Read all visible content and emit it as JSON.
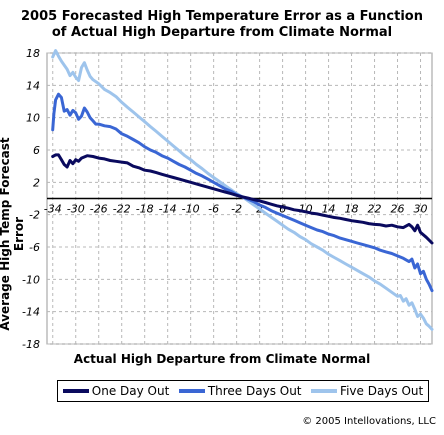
{
  "chart_data": {
    "type": "line",
    "title_line1": "2005 Forecasted High Temperature Error as a Function",
    "title_line2": "of Actual High Departure from Climate Normal",
    "xlabel": "Actual High Departure from Climate Normal",
    "ylabel": "Average High Temp Forecast Error",
    "xlim": [
      -35,
      32
    ],
    "ylim": [
      -18,
      18
    ],
    "x_ticks": [
      -34,
      -30,
      -26,
      -22,
      -18,
      -14,
      -10,
      -6,
      -2,
      2,
      6,
      10,
      14,
      18,
      22,
      26,
      30
    ],
    "x_tick_labels": [
      "-34",
      "-30",
      "-26",
      "-22",
      "-18",
      "-14",
      "-10",
      "-6",
      "-2",
      "2",
      "6",
      "10",
      "14",
      "18",
      "22",
      "26",
      "30"
    ],
    "y_ticks": [
      18,
      14,
      10,
      6,
      2,
      -2,
      -6,
      -10,
      -14,
      -18
    ],
    "y_tick_labels": [
      "18",
      "14",
      "10",
      "6",
      "2",
      "-2",
      "-6",
      "-10",
      "-14",
      "-18"
    ],
    "grid": true,
    "legend_position": "bottom",
    "series": [
      {
        "name": "One Day Out",
        "color": "#0a0a5e",
        "points": [
          [
            -34,
            5.2
          ],
          [
            -33.5,
            5.4
          ],
          [
            -33,
            5.4
          ],
          [
            -32.5,
            4.8
          ],
          [
            -32,
            4.2
          ],
          [
            -31.5,
            3.9
          ],
          [
            -31,
            4.7
          ],
          [
            -30.5,
            4.3
          ],
          [
            -30,
            4.8
          ],
          [
            -29.5,
            4.6
          ],
          [
            -29,
            5.0
          ],
          [
            -28,
            5.3
          ],
          [
            -27,
            5.2
          ],
          [
            -26,
            5.0
          ],
          [
            -25,
            4.9
          ],
          [
            -24,
            4.7
          ],
          [
            -23,
            4.6
          ],
          [
            -22,
            4.5
          ],
          [
            -21,
            4.4
          ],
          [
            -20,
            4.0
          ],
          [
            -19,
            3.8
          ],
          [
            -18,
            3.5
          ],
          [
            -17,
            3.4
          ],
          [
            -16,
            3.2
          ],
          [
            -15,
            3.0
          ],
          [
            -14,
            2.8
          ],
          [
            -13,
            2.6
          ],
          [
            -12,
            2.4
          ],
          [
            -11,
            2.2
          ],
          [
            -10,
            2.0
          ],
          [
            -9,
            1.8
          ],
          [
            -8,
            1.6
          ],
          [
            -7,
            1.4
          ],
          [
            -6,
            1.2
          ],
          [
            -5,
            1.0
          ],
          [
            -4,
            0.8
          ],
          [
            -3,
            0.6
          ],
          [
            -2,
            0.4
          ],
          [
            -1,
            0.2
          ],
          [
            0,
            0.05
          ],
          [
            1,
            -0.15
          ],
          [
            2,
            -0.3
          ],
          [
            3,
            -0.5
          ],
          [
            4,
            -0.7
          ],
          [
            5,
            -0.9
          ],
          [
            6,
            -1.05
          ],
          [
            7,
            -1.2
          ],
          [
            8,
            -1.4
          ],
          [
            9,
            -1.5
          ],
          [
            10,
            -1.65
          ],
          [
            11,
            -1.8
          ],
          [
            12,
            -1.9
          ],
          [
            13,
            -2.05
          ],
          [
            14,
            -2.2
          ],
          [
            15,
            -2.35
          ],
          [
            16,
            -2.45
          ],
          [
            17,
            -2.6
          ],
          [
            18,
            -2.75
          ],
          [
            19,
            -2.85
          ],
          [
            20,
            -2.95
          ],
          [
            21,
            -3.1
          ],
          [
            22,
            -3.2
          ],
          [
            23,
            -3.25
          ],
          [
            24,
            -3.4
          ],
          [
            25,
            -3.3
          ],
          [
            26,
            -3.5
          ],
          [
            27,
            -3.6
          ],
          [
            28,
            -3.2
          ],
          [
            28.5,
            -3.5
          ],
          [
            29,
            -4.0
          ],
          [
            29.5,
            -3.3
          ],
          [
            30,
            -4.2
          ],
          [
            31,
            -4.8
          ],
          [
            32,
            -5.5
          ]
        ]
      },
      {
        "name": "Three Days Out",
        "color": "#3a66d4",
        "points": [
          [
            -34,
            8.5
          ],
          [
            -33.8,
            10.5
          ],
          [
            -33.5,
            12.2
          ],
          [
            -33,
            12.9
          ],
          [
            -32.5,
            12.5
          ],
          [
            -32,
            10.8
          ],
          [
            -31.5,
            11.0
          ],
          [
            -31,
            10.3
          ],
          [
            -30.5,
            10.9
          ],
          [
            -30,
            10.6
          ],
          [
            -29.5,
            9.8
          ],
          [
            -29,
            10.2
          ],
          [
            -28.5,
            11.2
          ],
          [
            -28,
            10.7
          ],
          [
            -27.5,
            10.0
          ],
          [
            -27,
            9.6
          ],
          [
            -26.5,
            9.2
          ],
          [
            -26,
            9.2
          ],
          [
            -25,
            9.0
          ],
          [
            -24,
            8.9
          ],
          [
            -23,
            8.6
          ],
          [
            -22,
            8.0
          ],
          [
            -21,
            7.7
          ],
          [
            -20,
            7.3
          ],
          [
            -19,
            6.9
          ],
          [
            -18,
            6.4
          ],
          [
            -17,
            6.0
          ],
          [
            -16,
            5.7
          ],
          [
            -15,
            5.3
          ],
          [
            -14,
            5.0
          ],
          [
            -13,
            4.6
          ],
          [
            -12,
            4.2
          ],
          [
            -11,
            3.9
          ],
          [
            -10,
            3.5
          ],
          [
            -9,
            3.1
          ],
          [
            -8,
            2.8
          ],
          [
            -7,
            2.4
          ],
          [
            -6,
            2.0
          ],
          [
            -5,
            1.6
          ],
          [
            -4,
            1.2
          ],
          [
            -3,
            0.9
          ],
          [
            -2,
            0.5
          ],
          [
            -1,
            0.2
          ],
          [
            0,
            -0.1
          ],
          [
            1,
            -0.4
          ],
          [
            2,
            -0.8
          ],
          [
            3,
            -1.1
          ],
          [
            4,
            -1.5
          ],
          [
            5,
            -1.8
          ],
          [
            6,
            -2.1
          ],
          [
            7,
            -2.4
          ],
          [
            8,
            -2.7
          ],
          [
            9,
            -3.0
          ],
          [
            10,
            -3.3
          ],
          [
            11,
            -3.6
          ],
          [
            12,
            -3.9
          ],
          [
            13,
            -4.1
          ],
          [
            14,
            -4.4
          ],
          [
            15,
            -4.6
          ],
          [
            16,
            -4.9
          ],
          [
            17,
            -5.1
          ],
          [
            18,
            -5.3
          ],
          [
            19,
            -5.5
          ],
          [
            20,
            -5.7
          ],
          [
            21,
            -5.9
          ],
          [
            22,
            -6.1
          ],
          [
            23,
            -6.4
          ],
          [
            24,
            -6.6
          ],
          [
            25,
            -6.8
          ],
          [
            26,
            -7.1
          ],
          [
            27,
            -7.4
          ],
          [
            28,
            -7.8
          ],
          [
            28.5,
            -7.5
          ],
          [
            29,
            -8.6
          ],
          [
            29.5,
            -8.1
          ],
          [
            30,
            -9.3
          ],
          [
            30.5,
            -9.0
          ],
          [
            31,
            -10.0
          ],
          [
            31.5,
            -10.6
          ],
          [
            32,
            -11.4
          ]
        ]
      },
      {
        "name": "Five Days Out",
        "color": "#9ec4ec",
        "points": [
          [
            -34,
            17.5
          ],
          [
            -33.5,
            18.3
          ],
          [
            -33,
            17.6
          ],
          [
            -32.5,
            17.0
          ],
          [
            -32,
            16.5
          ],
          [
            -31.5,
            16.0
          ],
          [
            -31,
            15.2
          ],
          [
            -30.5,
            15.6
          ],
          [
            -30,
            15.0
          ],
          [
            -29.5,
            14.6
          ],
          [
            -29,
            16.2
          ],
          [
            -28.5,
            16.8
          ],
          [
            -28,
            15.9
          ],
          [
            -27.5,
            15.1
          ],
          [
            -27,
            14.7
          ],
          [
            -26,
            14.2
          ],
          [
            -25,
            13.5
          ],
          [
            -24,
            13.1
          ],
          [
            -23,
            12.6
          ],
          [
            -22,
            11.9
          ],
          [
            -21,
            11.3
          ],
          [
            -20,
            10.7
          ],
          [
            -19,
            10.1
          ],
          [
            -18,
            9.5
          ],
          [
            -17,
            8.9
          ],
          [
            -16,
            8.3
          ],
          [
            -15,
            7.7
          ],
          [
            -14,
            7.1
          ],
          [
            -13,
            6.5
          ],
          [
            -12,
            5.9
          ],
          [
            -11,
            5.3
          ],
          [
            -10,
            4.8
          ],
          [
            -9,
            4.2
          ],
          [
            -8,
            3.7
          ],
          [
            -7,
            3.1
          ],
          [
            -6,
            2.6
          ],
          [
            -5,
            2.1
          ],
          [
            -4,
            1.6
          ],
          [
            -3,
            1.1
          ],
          [
            -2,
            0.6
          ],
          [
            -1,
            0.2
          ],
          [
            0,
            -0.3
          ],
          [
            1,
            -0.8
          ],
          [
            2,
            -1.3
          ],
          [
            3,
            -1.8
          ],
          [
            4,
            -2.3
          ],
          [
            5,
            -2.8
          ],
          [
            6,
            -3.3
          ],
          [
            7,
            -3.8
          ],
          [
            8,
            -4.2
          ],
          [
            9,
            -4.7
          ],
          [
            10,
            -5.1
          ],
          [
            11,
            -5.6
          ],
          [
            12,
            -6.0
          ],
          [
            13,
            -6.4
          ],
          [
            14,
            -6.9
          ],
          [
            15,
            -7.3
          ],
          [
            16,
            -7.7
          ],
          [
            17,
            -8.1
          ],
          [
            18,
            -8.5
          ],
          [
            19,
            -8.9
          ],
          [
            20,
            -9.3
          ],
          [
            21,
            -9.7
          ],
          [
            22,
            -10.2
          ],
          [
            23,
            -10.6
          ],
          [
            24,
            -11.1
          ],
          [
            25,
            -11.6
          ],
          [
            26,
            -12.1
          ],
          [
            26.5,
            -12.0
          ],
          [
            27,
            -12.7
          ],
          [
            27.5,
            -12.4
          ],
          [
            28,
            -13.2
          ],
          [
            28.5,
            -12.9
          ],
          [
            29,
            -13.7
          ],
          [
            29.5,
            -14.6
          ],
          [
            30,
            -14.3
          ],
          [
            30.5,
            -14.8
          ],
          [
            31,
            -15.5
          ],
          [
            31.5,
            -15.8
          ],
          [
            32,
            -16.2
          ]
        ]
      }
    ],
    "copyright": "© 2005 Intellovations, LLC"
  }
}
